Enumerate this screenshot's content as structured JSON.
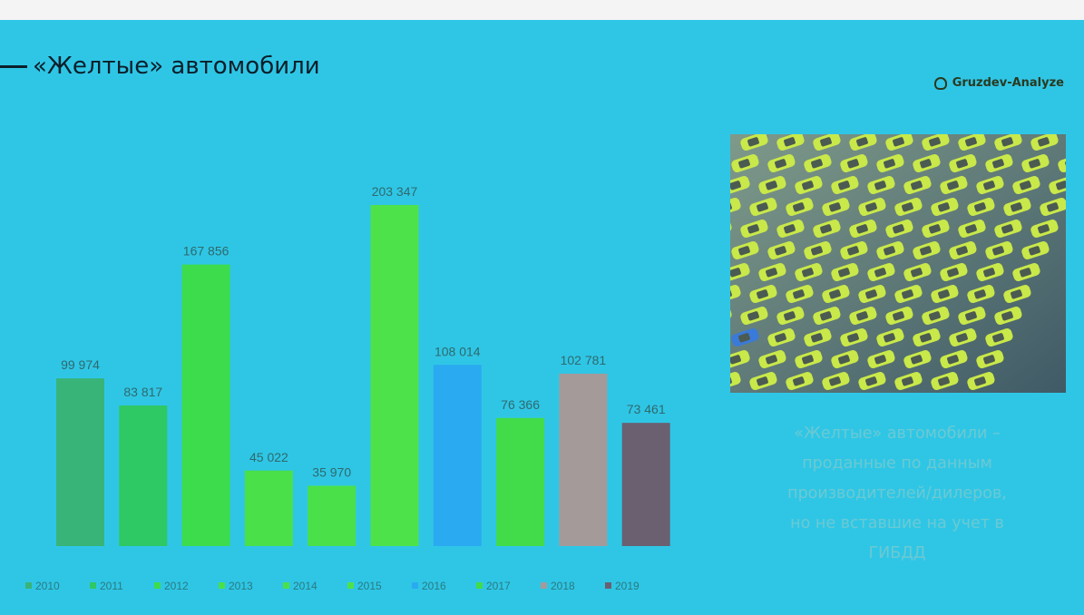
{
  "slide": {
    "title": "«Желтые» автомобили",
    "brand": "Gruzdev-Analyze",
    "caption_lines": [
      "«Желтые» автомобили –",
      "проданные по данным",
      "производителей/дилеров,",
      "но не вставшие на учет в",
      "ГИБДД"
    ],
    "photo_icon": "parking-lot-cars-photo"
  },
  "colors": {
    "background": "#2fc6e6",
    "title": "#0b1f2a",
    "caption": "#6cc9d2"
  },
  "chart_data": {
    "type": "bar",
    "categories": [
      "2010",
      "2011",
      "2012",
      "2013",
      "2014",
      "2015",
      "2016",
      "2017",
      "2018",
      "2019"
    ],
    "values": [
      99974,
      83817,
      167856,
      45022,
      35970,
      203347,
      108014,
      76366,
      102781,
      73461
    ],
    "value_labels": [
      "99 974",
      "83 817",
      "167 856",
      "45 022",
      "35 970",
      "203 347",
      "108 014",
      "76 366",
      "102 781",
      "73 461"
    ],
    "colors": [
      "#38b478",
      "#2ec864",
      "#3ddc4c",
      "#4ae04a",
      "#4ae04a",
      "#4ee24a",
      "#2aaaf0",
      "#42dc4a",
      "#a49a9a",
      "#6a6070"
    ],
    "legend_labels": [
      "2010",
      "2011",
      "2012",
      "2013",
      "2014",
      "2015",
      "2016",
      "2017",
      "2018",
      "2019"
    ],
    "legend_position": "bottom",
    "ylim": [
      0,
      220000
    ],
    "grid": false
  }
}
